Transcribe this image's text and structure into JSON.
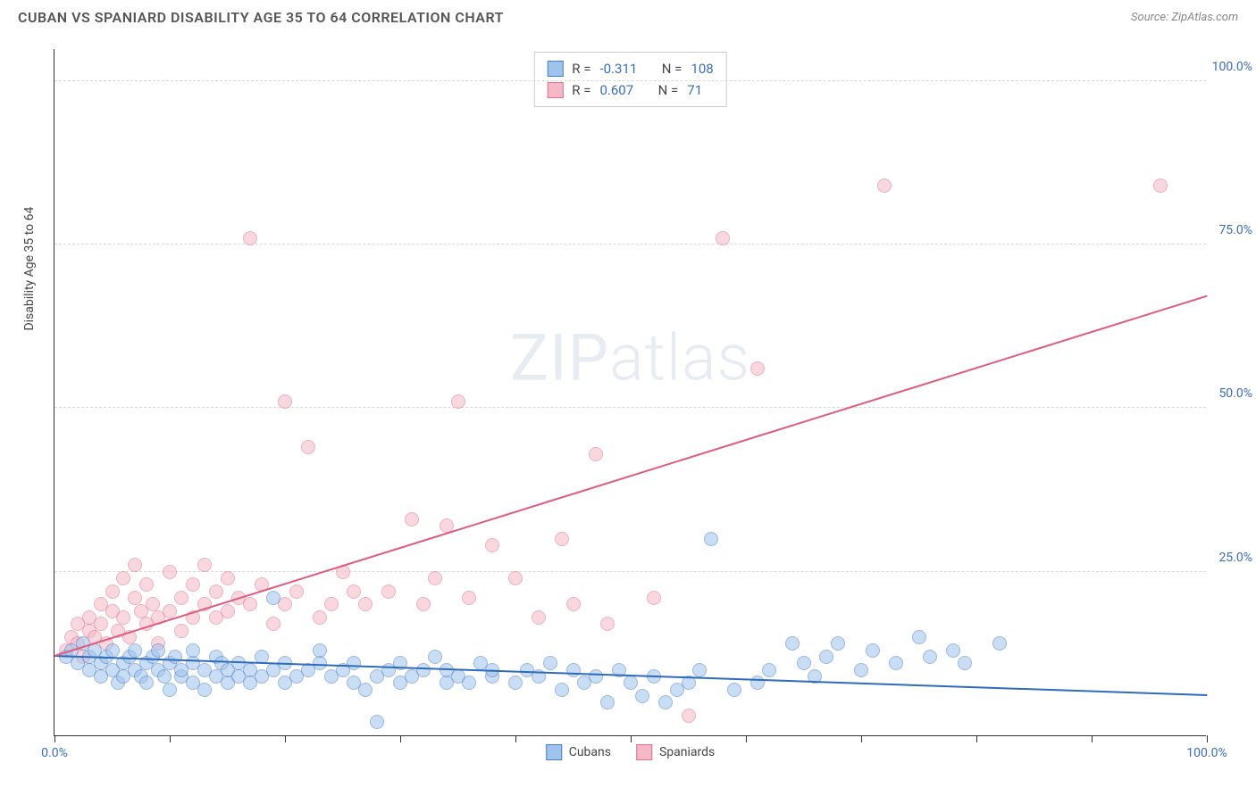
{
  "header": {
    "title": "CUBAN VS SPANIARD DISABILITY AGE 35 TO 64 CORRELATION CHART",
    "source_prefix": "Source: ",
    "source": "ZipAtlas.com"
  },
  "chart": {
    "type": "scatter",
    "ylabel": "Disability Age 35 to 64",
    "xlim": [
      0,
      100
    ],
    "ylim": [
      0,
      105
    ],
    "x_ticks": [
      0,
      10,
      20,
      30,
      40,
      50,
      60,
      70,
      80,
      90,
      100
    ],
    "x_tick_labels": {
      "0": "0.0%",
      "100": "100.0%"
    },
    "y_gridlines": [
      25,
      50,
      75,
      100
    ],
    "y_tick_labels": {
      "25": "25.0%",
      "50": "50.0%",
      "75": "75.0%",
      "100": "100.0%"
    },
    "background_color": "#ffffff",
    "grid_color": "#d8d8d8",
    "axis_label_color": "#3b6db5",
    "marker_radius": 8,
    "marker_opacity": 0.55,
    "watermark": "ZIPatlas",
    "series": [
      {
        "name": "Cubans",
        "fill": "#9ec3ec",
        "stroke": "#4a7fc5",
        "line_color": "#2f6bbd",
        "r_label": "R = ",
        "r_value": "-0.311",
        "n_label": "N = ",
        "n_value": "108",
        "trend": {
          "x1": 0,
          "y1": 12,
          "x2": 100,
          "y2": 6
        },
        "points": [
          [
            1,
            12
          ],
          [
            1.5,
            13
          ],
          [
            2,
            11
          ],
          [
            2.5,
            14
          ],
          [
            3,
            10
          ],
          [
            3,
            12
          ],
          [
            3.5,
            13
          ],
          [
            4,
            9
          ],
          [
            4,
            11
          ],
          [
            4.5,
            12
          ],
          [
            5,
            10
          ],
          [
            5,
            13
          ],
          [
            5.5,
            8
          ],
          [
            6,
            11
          ],
          [
            6,
            9
          ],
          [
            6.5,
            12
          ],
          [
            7,
            10
          ],
          [
            7,
            13
          ],
          [
            7.5,
            9
          ],
          [
            8,
            11
          ],
          [
            8,
            8
          ],
          [
            8.5,
            12
          ],
          [
            9,
            10
          ],
          [
            9,
            13
          ],
          [
            9.5,
            9
          ],
          [
            10,
            11
          ],
          [
            10,
            7
          ],
          [
            10.5,
            12
          ],
          [
            11,
            9
          ],
          [
            11,
            10
          ],
          [
            12,
            11
          ],
          [
            12,
            8
          ],
          [
            12,
            13
          ],
          [
            13,
            10
          ],
          [
            13,
            7
          ],
          [
            14,
            12
          ],
          [
            14,
            9
          ],
          [
            14.5,
            11
          ],
          [
            15,
            8
          ],
          [
            15,
            10
          ],
          [
            16,
            9
          ],
          [
            16,
            11
          ],
          [
            17,
            10
          ],
          [
            17,
            8
          ],
          [
            18,
            12
          ],
          [
            18,
            9
          ],
          [
            19,
            21
          ],
          [
            19,
            10
          ],
          [
            20,
            11
          ],
          [
            20,
            8
          ],
          [
            21,
            9
          ],
          [
            22,
            10
          ],
          [
            23,
            11
          ],
          [
            23,
            13
          ],
          [
            24,
            9
          ],
          [
            25,
            10
          ],
          [
            26,
            8
          ],
          [
            26,
            11
          ],
          [
            27,
            7
          ],
          [
            28,
            9
          ],
          [
            28,
            2
          ],
          [
            29,
            10
          ],
          [
            30,
            8
          ],
          [
            30,
            11
          ],
          [
            31,
            9
          ],
          [
            32,
            10
          ],
          [
            33,
            12
          ],
          [
            34,
            8
          ],
          [
            34,
            10
          ],
          [
            35,
            9
          ],
          [
            36,
            8
          ],
          [
            37,
            11
          ],
          [
            38,
            9
          ],
          [
            38,
            10
          ],
          [
            40,
            8
          ],
          [
            41,
            10
          ],
          [
            42,
            9
          ],
          [
            43,
            11
          ],
          [
            44,
            7
          ],
          [
            45,
            10
          ],
          [
            46,
            8
          ],
          [
            47,
            9
          ],
          [
            48,
            5
          ],
          [
            49,
            10
          ],
          [
            50,
            8
          ],
          [
            51,
            6
          ],
          [
            52,
            9
          ],
          [
            53,
            5
          ],
          [
            54,
            7
          ],
          [
            55,
            8
          ],
          [
            56,
            10
          ],
          [
            57,
            30
          ],
          [
            59,
            7
          ],
          [
            61,
            8
          ],
          [
            62,
            10
          ],
          [
            64,
            14
          ],
          [
            65,
            11
          ],
          [
            66,
            9
          ],
          [
            67,
            12
          ],
          [
            68,
            14
          ],
          [
            70,
            10
          ],
          [
            71,
            13
          ],
          [
            73,
            11
          ],
          [
            75,
            15
          ],
          [
            76,
            12
          ],
          [
            78,
            13
          ],
          [
            79,
            11
          ],
          [
            82,
            14
          ]
        ]
      },
      {
        "name": "Spaniards",
        "fill": "#f4b8c6",
        "stroke": "#e1708c",
        "line_color": "#e05a7d",
        "r_label": "R = ",
        "r_value": "0.607",
        "n_label": "N = ",
        "n_value": "71",
        "trend": {
          "x1": 0,
          "y1": 12,
          "x2": 100,
          "y2": 67
        },
        "points": [
          [
            1,
            13
          ],
          [
            1.5,
            15
          ],
          [
            2,
            14
          ],
          [
            2,
            17
          ],
          [
            2.5,
            12
          ],
          [
            3,
            18
          ],
          [
            3,
            16
          ],
          [
            3.5,
            15
          ],
          [
            4,
            20
          ],
          [
            4,
            17
          ],
          [
            4.5,
            14
          ],
          [
            5,
            22
          ],
          [
            5,
            19
          ],
          [
            5.5,
            16
          ],
          [
            6,
            24
          ],
          [
            6,
            18
          ],
          [
            6.5,
            15
          ],
          [
            7,
            21
          ],
          [
            7,
            26
          ],
          [
            7.5,
            19
          ],
          [
            8,
            17
          ],
          [
            8,
            23
          ],
          [
            8.5,
            20
          ],
          [
            9,
            18
          ],
          [
            9,
            14
          ],
          [
            10,
            25
          ],
          [
            10,
            19
          ],
          [
            11,
            21
          ],
          [
            11,
            16
          ],
          [
            12,
            23
          ],
          [
            12,
            18
          ],
          [
            13,
            20
          ],
          [
            13,
            26
          ],
          [
            14,
            22
          ],
          [
            14,
            18
          ],
          [
            15,
            24
          ],
          [
            15,
            19
          ],
          [
            16,
            21
          ],
          [
            17,
            76
          ],
          [
            17,
            20
          ],
          [
            18,
            23
          ],
          [
            19,
            17
          ],
          [
            20,
            51
          ],
          [
            20,
            20
          ],
          [
            21,
            22
          ],
          [
            22,
            44
          ],
          [
            23,
            18
          ],
          [
            24,
            20
          ],
          [
            25,
            25
          ],
          [
            26,
            22
          ],
          [
            27,
            20
          ],
          [
            29,
            22
          ],
          [
            31,
            33
          ],
          [
            32,
            20
          ],
          [
            33,
            24
          ],
          [
            34,
            32
          ],
          [
            35,
            51
          ],
          [
            36,
            21
          ],
          [
            38,
            29
          ],
          [
            40,
            24
          ],
          [
            42,
            18
          ],
          [
            44,
            30
          ],
          [
            45,
            20
          ],
          [
            47,
            43
          ],
          [
            48,
            17
          ],
          [
            52,
            21
          ],
          [
            55,
            3
          ],
          [
            58,
            76
          ],
          [
            61,
            56
          ],
          [
            72,
            84
          ],
          [
            96,
            84
          ]
        ]
      }
    ],
    "legend": {
      "cubans": "Cubans",
      "spaniards": "Spaniards"
    }
  }
}
